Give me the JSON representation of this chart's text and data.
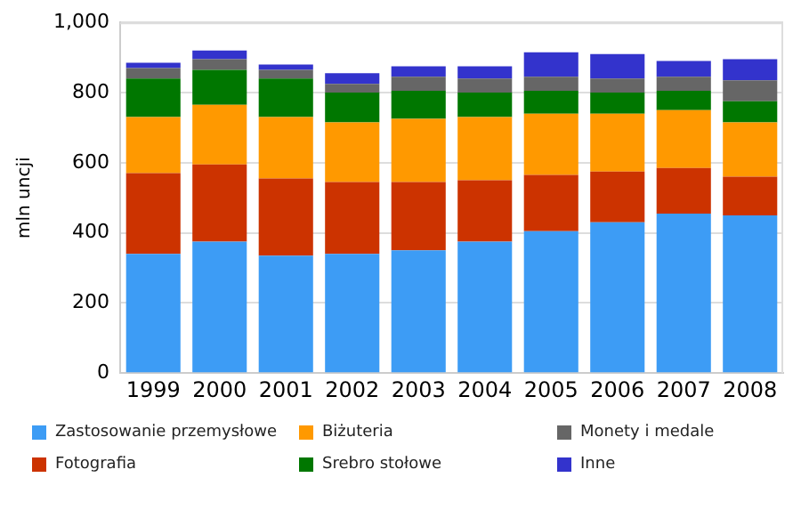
{
  "chart_data": {
    "type": "bar",
    "stacked": true,
    "ylabel": "mln uncji",
    "categories": [
      "1999",
      "2000",
      "2001",
      "2002",
      "2003",
      "2004",
      "2005",
      "2006",
      "2007",
      "2008"
    ],
    "series": [
      {
        "name": "Zastosowanie przemysłowe",
        "color": "#3d9cf5",
        "values": [
          340,
          375,
          335,
          340,
          350,
          375,
          405,
          430,
          455,
          450
        ]
      },
      {
        "name": "Fotografia",
        "color": "#cc3300",
        "values": [
          230,
          220,
          220,
          205,
          195,
          175,
          160,
          145,
          130,
          110
        ]
      },
      {
        "name": "Biżuteria",
        "color": "#ff9900",
        "values": [
          160,
          170,
          175,
          170,
          180,
          180,
          175,
          165,
          165,
          155
        ]
      },
      {
        "name": "Srebro stołowe",
        "color": "#007700",
        "values": [
          110,
          100,
          110,
          85,
          80,
          70,
          65,
          60,
          55,
          60
        ]
      },
      {
        "name": "Monety i medale",
        "color": "#666666",
        "values": [
          30,
          30,
          25,
          25,
          40,
          40,
          40,
          40,
          40,
          60
        ]
      },
      {
        "name": "Inne",
        "color": "#3333cc",
        "values": [
          15,
          25,
          15,
          30,
          30,
          35,
          70,
          70,
          45,
          60
        ]
      }
    ],
    "ylim": [
      0,
      1000
    ],
    "yticks": [
      0,
      200,
      400,
      600,
      800,
      {
        "value": 1000,
        "label": "1,000"
      }
    ],
    "grid": "y",
    "legend": "bottom"
  }
}
